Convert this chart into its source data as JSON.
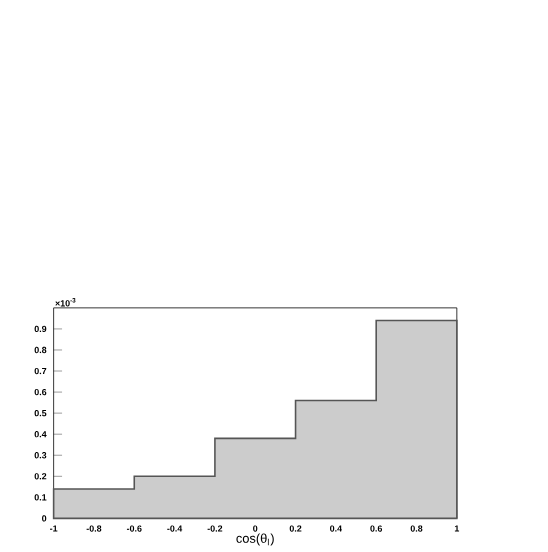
{
  "chart_data": {
    "type": "histogram",
    "xlabel": "cos(θ$_{l}$)",
    "annotations": [
      "×10$^{-3}$"
    ],
    "bins": [
      -1,
      -0.6,
      -0.2,
      0.2,
      0.6,
      1
    ],
    "values": [
      0.14,
      0.2,
      0.38,
      0.56,
      0.94
    ],
    "color": "#cccccc",
    "xlim": [
      -1,
      1
    ],
    "ylim": [
      0,
      1
    ],
    "xticks": [
      -1,
      -0.8,
      -0.6,
      -0.4,
      -0.2,
      0,
      0.2,
      0.4,
      0.6,
      0.8,
      1
    ],
    "yticks": [
      0,
      0.1,
      0.2,
      0.3,
      0.4,
      0.5,
      0.6,
      0.7,
      0.8,
      0.9
    ],
    "grid": false
  }
}
